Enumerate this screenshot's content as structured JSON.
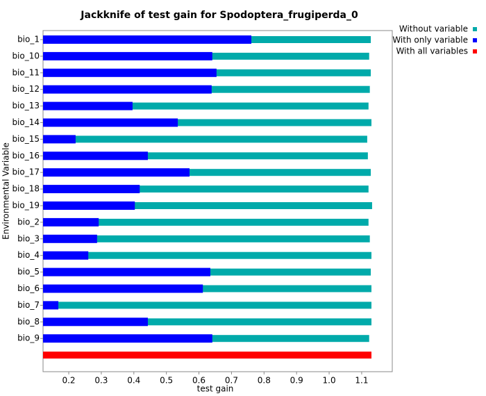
{
  "chart_data": {
    "type": "bar",
    "orientation": "horizontal",
    "title": "Jackknife of test gain for Spodoptera_frugiperda_0",
    "x_label": "test gain",
    "y_label": "Environmental Variable",
    "categories": [
      "bio_1",
      "bio_10",
      "bio_11",
      "bio_12",
      "bio_13",
      "bio_14",
      "bio_15",
      "bio_16",
      "bio_17",
      "bio_18",
      "bio_19",
      "bio_2",
      "bio_3",
      "bio_4",
      "bio_5",
      "bio_6",
      "bio_7",
      "bio_8",
      "bio_9",
      null
    ],
    "series": [
      {
        "name": "Without variable",
        "color": "#00aaaa",
        "values": [
          1.128,
          1.123,
          1.128,
          1.125,
          1.121,
          1.13,
          1.117,
          1.119,
          1.128,
          1.121,
          1.132,
          1.121,
          1.125,
          1.13,
          1.128,
          1.13,
          1.13,
          1.13,
          1.123,
          null
        ]
      },
      {
        "name": "With only variable",
        "color": "#0000ff",
        "values": [
          0.761,
          0.641,
          0.654,
          0.639,
          0.396,
          0.535,
          0.221,
          0.443,
          0.571,
          0.418,
          0.403,
          0.292,
          0.287,
          0.26,
          0.635,
          0.612,
          0.168,
          0.443,
          0.641,
          null
        ]
      },
      {
        "name": "With all variables",
        "color": "#ff0000",
        "values": [
          null,
          null,
          null,
          null,
          null,
          null,
          null,
          null,
          null,
          null,
          null,
          null,
          null,
          null,
          null,
          null,
          null,
          null,
          null,
          1.13
        ]
      }
    ],
    "xlim": [
      0.121,
      1.194
    ],
    "xticks": [
      0.2,
      0.3,
      0.4,
      0.5,
      0.6,
      0.7,
      0.8,
      0.9,
      {
        "value": 1,
        "label": "1.0"
      },
      1.1
    ],
    "legend": "outside-top-right"
  }
}
